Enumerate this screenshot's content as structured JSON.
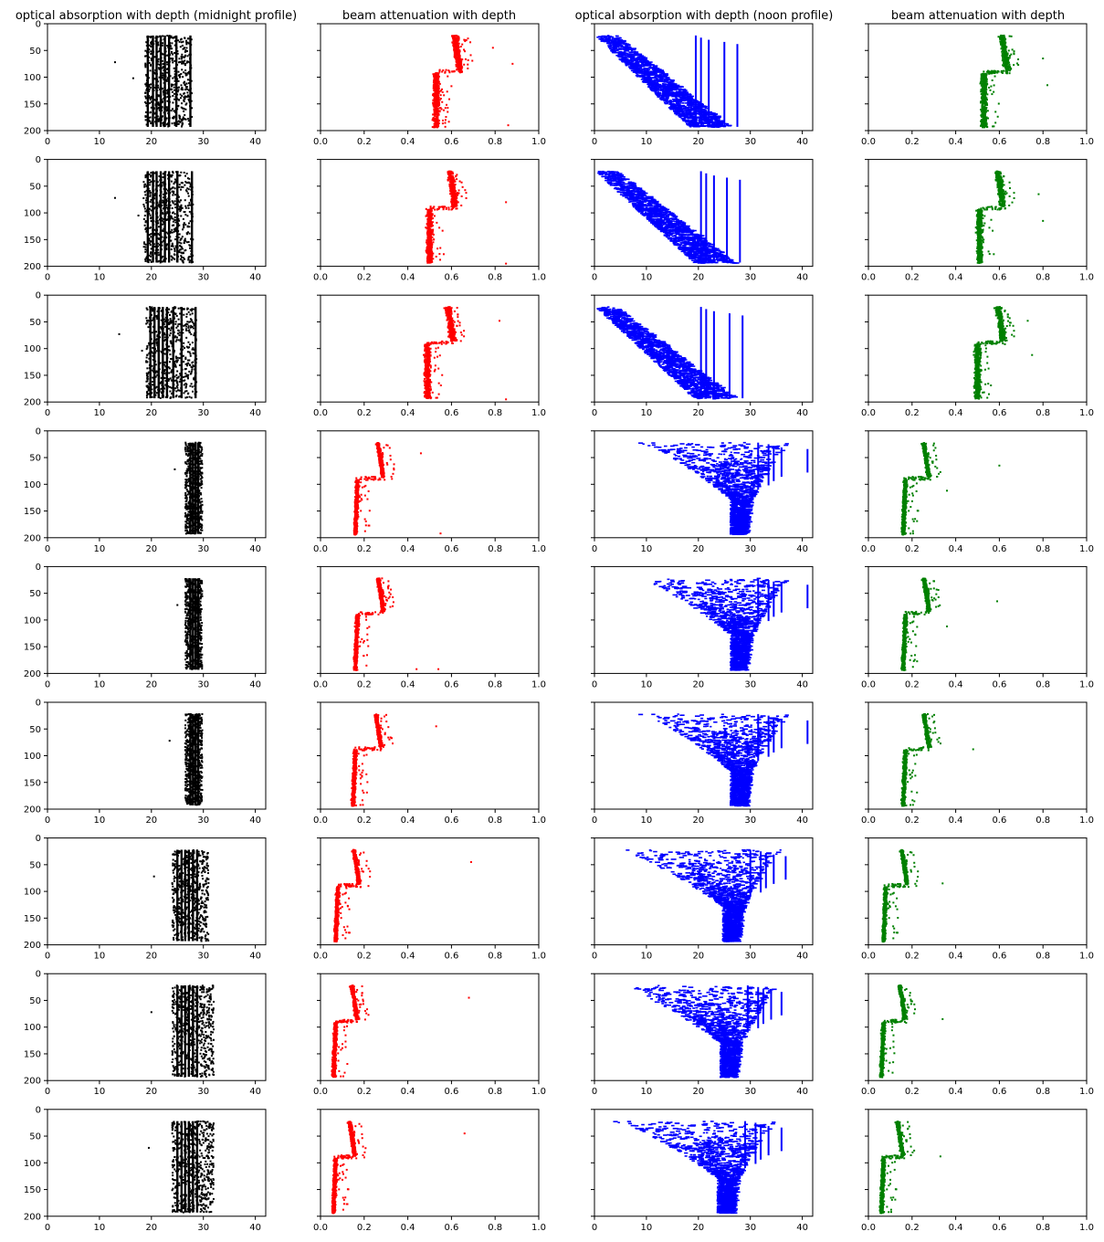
{
  "figure": {
    "column_titles": [
      "optical absorption with depth (midnight profile)",
      "beam attenuation with depth",
      "optical absorption with depth (noon profile)",
      "beam attenuation with depth"
    ],
    "column_colors": [
      "#000000",
      "#ff0000",
      "#0000ff",
      "#008000"
    ],
    "column_xlim": [
      [
        0,
        42
      ],
      [
        0,
        1.0
      ],
      [
        0,
        42
      ],
      [
        0,
        1.0
      ]
    ],
    "column_xticks": [
      [
        "0",
        "10",
        "20",
        "30",
        "40"
      ],
      [
        "0.0",
        "0.2",
        "0.4",
        "0.6",
        "0.8",
        "1.0"
      ],
      [
        "0",
        "10",
        "20",
        "30",
        "40"
      ],
      [
        "0.0",
        "0.2",
        "0.4",
        "0.6",
        "0.8",
        "1.0"
      ]
    ],
    "ylim_inverted": [
      200,
      0
    ],
    "yticks": [
      "0",
      "50",
      "100",
      "150",
      "200"
    ],
    "rows": 9
  },
  "chart_data": {
    "type": "scatter",
    "layout": "9 rows x 4 columns grid of scatter plots, y axis is depth (inverted, 0 at top)",
    "ylabel_ticks": [
      "0",
      "50",
      "100",
      "150",
      "200"
    ],
    "ylim": [
      200,
      0
    ],
    "rows": [
      {
        "midnight_absorption": {
          "bands": [
            19.3,
            20.3,
            21.0,
            21.8,
            22.6,
            23.4,
            24.8,
            27.5
          ],
          "xrange": [
            18.8,
            27.8
          ],
          "outliers": [
            [
              13,
              72
            ],
            [
              16.5,
              102
            ]
          ]
        },
        "attenuation_a": {
          "top": 0.64,
          "bottom": 0.53,
          "transition_depth": 90,
          "outliers": [
            [
              0.79,
              45
            ],
            [
              0.88,
              75
            ],
            [
              0.86,
              190
            ]
          ]
        },
        "noon_absorption": {
          "surface_min": 0,
          "deep_center": 19,
          "max": 27.5
        },
        "attenuation_b": {
          "top": 0.64,
          "bottom": 0.53,
          "transition_depth": 92,
          "outliers": [
            [
              0.8,
              65
            ],
            [
              0.82,
              115
            ]
          ]
        }
      },
      {
        "midnight_absorption": {
          "bands": [
            19.3,
            20.3,
            21.0,
            21.8,
            22.6,
            23.4,
            25.0,
            27.8
          ],
          "xrange": [
            18.5,
            28.0
          ],
          "outliers": [
            [
              13,
              72
            ],
            [
              17.5,
              105
            ]
          ]
        },
        "attenuation_a": {
          "top": 0.62,
          "bottom": 0.5,
          "transition_depth": 92,
          "outliers": [
            [
              0.85,
              80
            ],
            [
              0.85,
              195
            ]
          ]
        },
        "noon_absorption": {
          "surface_min": 0,
          "deep_center": 20,
          "max": 28
        },
        "attenuation_b": {
          "top": 0.62,
          "bottom": 0.51,
          "transition_depth": 92,
          "outliers": [
            [
              0.78,
              65
            ],
            [
              0.8,
              115
            ]
          ]
        }
      },
      {
        "midnight_absorption": {
          "bands": [
            19.8,
            20.6,
            21.4,
            22.2,
            23.0,
            24.2,
            25.8,
            28.5
          ],
          "xrange": [
            19.0,
            28.7
          ],
          "outliers": [
            [
              13.8,
              73
            ],
            [
              18.2,
              104
            ]
          ]
        },
        "attenuation_a": {
          "top": 0.61,
          "bottom": 0.49,
          "transition_depth": 90,
          "outliers": [
            [
              0.82,
              48
            ],
            [
              0.85,
              195
            ]
          ]
        },
        "noon_absorption": {
          "surface_min": 0,
          "deep_center": 20,
          "max": 28.5
        },
        "attenuation_b": {
          "top": 0.62,
          "bottom": 0.5,
          "transition_depth": 90,
          "outliers": [
            [
              0.73,
              48
            ],
            [
              0.75,
              112
            ]
          ]
        }
      },
      {
        "midnight_absorption": {
          "bands": [
            27.5,
            28.0,
            28.5,
            29.0
          ],
          "xrange": [
            26.5,
            29.8
          ],
          "outliers": [
            [
              24.5,
              72
            ]
          ]
        },
        "attenuation_a": {
          "top": 0.29,
          "bottom": 0.17,
          "transition_depth": 90,
          "outliers": [
            [
              0.46,
              42
            ],
            [
              0.55,
              192
            ]
          ]
        },
        "noon_absorption": {
          "surface_min": 7,
          "deep_center": 27.5,
          "max": 41
        },
        "attenuation_b": {
          "top": 0.28,
          "bottom": 0.17,
          "transition_depth": 90,
          "outliers": [
            [
              0.6,
              65
            ],
            [
              0.36,
              112
            ]
          ]
        }
      },
      {
        "midnight_absorption": {
          "bands": [
            27.5,
            28.0,
            28.5,
            29.0
          ],
          "xrange": [
            26.5,
            29.8
          ],
          "outliers": [
            [
              25,
              72
            ]
          ]
        },
        "attenuation_a": {
          "top": 0.29,
          "bottom": 0.17,
          "transition_depth": 88,
          "outliers": [
            [
              0.44,
              192
            ],
            [
              0.54,
              192
            ]
          ]
        },
        "noon_absorption": {
          "surface_min": 7,
          "deep_center": 27.5,
          "max": 41
        },
        "attenuation_b": {
          "top": 0.28,
          "bottom": 0.17,
          "transition_depth": 88,
          "outliers": [
            [
              0.59,
              65
            ],
            [
              0.36,
              112
            ]
          ]
        }
      },
      {
        "midnight_absorption": {
          "bands": [
            27.5,
            28.0,
            28.5,
            29.0
          ],
          "xrange": [
            26.5,
            29.8
          ],
          "outliers": [
            [
              23.5,
              72
            ]
          ]
        },
        "attenuation_a": {
          "top": 0.28,
          "bottom": 0.16,
          "transition_depth": 88,
          "outliers": [
            [
              0.53,
              45
            ]
          ]
        },
        "noon_absorption": {
          "surface_min": 7,
          "deep_center": 27.5,
          "max": 41
        },
        "attenuation_b": {
          "top": 0.28,
          "bottom": 0.17,
          "transition_depth": 88,
          "outliers": [
            [
              0.48,
              88
            ]
          ]
        }
      },
      {
        "midnight_absorption": {
          "bands": [
            25.0,
            25.8,
            26.5,
            27.2,
            28.0,
            28.8
          ],
          "xrange": [
            24.0,
            31.0
          ],
          "outliers": [
            [
              20.5,
              72
            ]
          ]
        },
        "attenuation_a": {
          "top": 0.18,
          "bottom": 0.08,
          "transition_depth": 90,
          "outliers": [
            [
              0.69,
              45
            ]
          ]
        },
        "noon_absorption": {
          "surface_min": 3,
          "deep_center": 26,
          "max": 36.8
        },
        "attenuation_b": {
          "top": 0.18,
          "bottom": 0.08,
          "transition_depth": 90,
          "outliers": [
            [
              0.34,
              85
            ]
          ]
        }
      },
      {
        "midnight_absorption": {
          "bands": [
            25.0,
            25.8,
            26.5,
            27.2,
            28.0,
            28.8
          ],
          "xrange": [
            24.0,
            32.0
          ],
          "outliers": [
            [
              20,
              72
            ]
          ]
        },
        "attenuation_a": {
          "top": 0.17,
          "bottom": 0.07,
          "transition_depth": 90,
          "outliers": [
            [
              0.68,
              45
            ]
          ]
        },
        "noon_absorption": {
          "surface_min": 2.5,
          "deep_center": 25.5,
          "max": 36
        },
        "attenuation_b": {
          "top": 0.17,
          "bottom": 0.07,
          "transition_depth": 90,
          "outliers": [
            [
              0.34,
              85
            ]
          ]
        }
      },
      {
        "midnight_absorption": {
          "bands": [
            25.0,
            25.8,
            26.5,
            27.2,
            28.0,
            28.8
          ],
          "xrange": [
            24.0,
            32.0
          ],
          "outliers": [
            [
              19.5,
              72
            ]
          ]
        },
        "attenuation_a": {
          "top": 0.16,
          "bottom": 0.07,
          "transition_depth": 90,
          "outliers": [
            [
              0.66,
              45
            ]
          ]
        },
        "noon_absorption": {
          "surface_min": 2,
          "deep_center": 25,
          "max": 36
        },
        "attenuation_b": {
          "top": 0.16,
          "bottom": 0.07,
          "transition_depth": 90,
          "outliers": [
            [
              0.33,
              88
            ]
          ]
        }
      }
    ]
  }
}
